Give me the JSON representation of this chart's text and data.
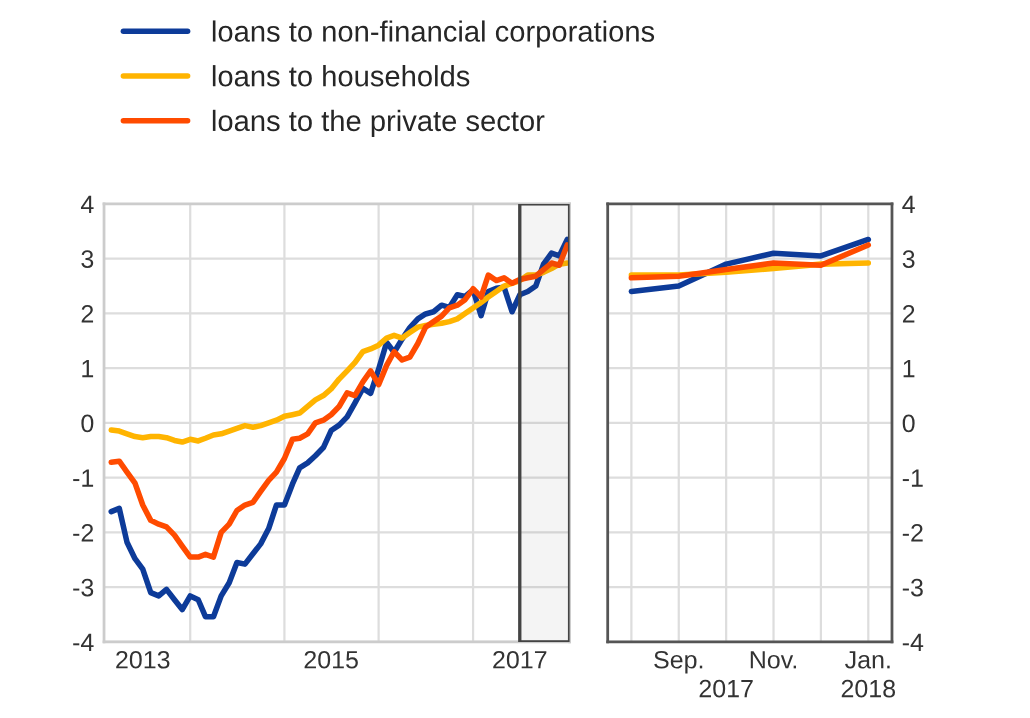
{
  "chart_data": [
    {
      "type": "line",
      "legend": "top",
      "grid": true,
      "x": [
        "2013-03",
        "2013-04",
        "2013-05",
        "2013-06",
        "2013-07",
        "2013-08",
        "2013-09",
        "2013-10",
        "2013-11",
        "2013-12",
        "2014-01",
        "2014-02",
        "2014-03",
        "2014-04",
        "2014-05",
        "2014-06",
        "2014-07",
        "2014-08",
        "2014-09",
        "2014-10",
        "2014-11",
        "2014-12",
        "2015-01",
        "2015-02",
        "2015-03",
        "2015-04",
        "2015-05",
        "2015-06",
        "2015-07",
        "2015-08",
        "2015-09",
        "2015-10",
        "2015-11",
        "2015-12",
        "2016-01",
        "2016-02",
        "2016-03",
        "2016-04",
        "2016-05",
        "2016-06",
        "2016-07",
        "2016-08",
        "2016-09",
        "2016-10",
        "2016-11",
        "2016-12",
        "2017-01",
        "2017-02",
        "2017-03",
        "2017-04",
        "2017-05",
        "2017-06",
        "2017-07",
        "2017-08",
        "2017-09",
        "2017-10",
        "2017-11",
        "2017-12",
        "2018-01"
      ],
      "xlim": [
        "2013-02",
        "2018-01-10"
      ],
      "xticks": [
        {
          "value": "2013-07",
          "label": "2013"
        },
        {
          "value": "2014-01",
          "label": null
        },
        {
          "value": "2015-01",
          "label": null
        },
        {
          "value": "2015-07",
          "label": "2015"
        },
        {
          "value": "2016-01",
          "label": null
        },
        {
          "value": "2017-01",
          "label": null
        },
        {
          "value": "2017-07",
          "label": "2017"
        }
      ],
      "ylim": [
        -4,
        4
      ],
      "yticks": [
        -4,
        -3,
        -2,
        -1,
        0,
        1,
        2,
        3,
        4
      ],
      "bands": [
        {
          "axis": "x",
          "from": "2017-07",
          "to": "2018-01-10",
          "color": "#444444"
        }
      ],
      "series": [
        {
          "name": "loans to non-financial corporations",
          "color": "#0d3b99",
          "values": [
            -1.62,
            -1.56,
            -2.18,
            -2.48,
            -2.67,
            -3.1,
            -3.16,
            -3.04,
            -3.23,
            -3.41,
            -3.16,
            -3.23,
            -3.54,
            -3.54,
            -3.16,
            -2.92,
            -2.55,
            -2.58,
            -2.39,
            -2.21,
            -1.93,
            -1.5,
            -1.5,
            -1.12,
            -0.82,
            -0.73,
            -0.6,
            -0.45,
            -0.14,
            -0.04,
            0.11,
            0.36,
            0.63,
            0.54,
            0.98,
            1.47,
            1.29,
            1.53,
            1.74,
            1.9,
            1.99,
            2.03,
            2.15,
            2.11,
            2.34,
            2.31,
            2.43,
            1.96,
            2.4,
            2.46,
            2.48,
            2.03,
            2.34,
            2.4,
            2.5,
            2.9,
            3.1,
            3.05,
            3.35
          ]
        },
        {
          "name": "loans to households",
          "color": "#ffb400",
          "values": [
            -0.13,
            -0.15,
            -0.2,
            -0.25,
            -0.27,
            -0.25,
            -0.25,
            -0.27,
            -0.32,
            -0.35,
            -0.3,
            -0.33,
            -0.28,
            -0.22,
            -0.2,
            -0.15,
            -0.1,
            -0.05,
            -0.08,
            -0.05,
            0,
            0.05,
            0.12,
            0.15,
            0.18,
            0.3,
            0.42,
            0.5,
            0.62,
            0.8,
            0.95,
            1.1,
            1.3,
            1.35,
            1.42,
            1.55,
            1.6,
            1.55,
            1.65,
            1.75,
            1.78,
            1.8,
            1.82,
            1.85,
            1.9,
            2.0,
            2.1,
            2.2,
            2.3,
            2.4,
            2.5,
            2.55,
            2.6,
            2.7,
            2.7,
            2.75,
            2.82,
            2.9,
            2.92
          ]
        },
        {
          "name": "loans to the private sector",
          "color": "#ff4b00",
          "values": [
            -0.72,
            -0.7,
            -0.9,
            -1.1,
            -1.5,
            -1.78,
            -1.85,
            -1.9,
            -2.05,
            -2.25,
            -2.45,
            -2.45,
            -2.4,
            -2.45,
            -2.0,
            -1.85,
            -1.6,
            -1.5,
            -1.45,
            -1.25,
            -1.05,
            -0.9,
            -0.65,
            -0.3,
            -0.28,
            -0.2,
            0.0,
            0.05,
            0.15,
            0.3,
            0.55,
            0.5,
            0.75,
            0.95,
            0.7,
            1.05,
            1.3,
            1.15,
            1.2,
            1.45,
            1.75,
            1.85,
            1.95,
            2.1,
            2.15,
            2.25,
            2.45,
            2.3,
            2.7,
            2.6,
            2.65,
            2.55,
            2.62,
            2.65,
            2.68,
            2.8,
            2.92,
            2.88,
            3.25
          ]
        }
      ]
    },
    {
      "type": "line",
      "grid": true,
      "categories": [
        null,
        "Sep.",
        null,
        "Nov.",
        null,
        "Jan."
      ],
      "annotations": [
        "2017",
        "2018"
      ],
      "ylim": [
        -4,
        4
      ],
      "yticks": [
        -4,
        -3,
        -2,
        -1,
        0,
        1,
        2,
        3,
        4
      ],
      "series": [
        {
          "color": "#0d3b99",
          "values": [
            2.4,
            2.5,
            2.9,
            3.1,
            3.05,
            3.35
          ]
        },
        {
          "color": "#ffb400",
          "values": [
            2.7,
            2.7,
            2.75,
            2.82,
            2.9,
            2.92
          ]
        },
        {
          "color": "#ff4b00",
          "values": [
            2.65,
            2.68,
            2.8,
            2.92,
            2.88,
            3.25
          ]
        }
      ]
    }
  ]
}
